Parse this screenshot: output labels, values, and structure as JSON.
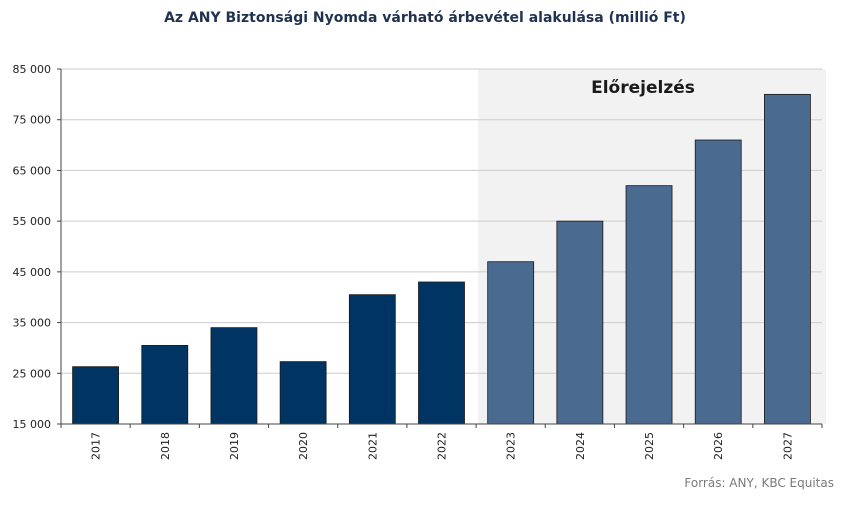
{
  "title": "Az ANY Biztonsági Nyomda várható árbevétel  alakulása (millió Ft)",
  "source": "Forrás: ANY, KBC Equitas",
  "colors": {
    "actual": "#003463",
    "forecast": "#4a6a8f",
    "forecast_background": "#f2f2f2",
    "grid": "#cccccc",
    "axis": "#444444"
  },
  "chart_data": {
    "type": "bar",
    "title": "Az ANY Biztonsági Nyomda várható árbevétel  alakulása (millió Ft)",
    "categories": [
      "2017",
      "2018",
      "2019",
      "2020",
      "2021",
      "2022",
      "2023",
      "2024",
      "2025",
      "2026",
      "2027"
    ],
    "values": [
      26300,
      30500,
      34000,
      27300,
      40500,
      43000,
      47000,
      55000,
      62000,
      71000,
      80000
    ],
    "forecast_from": "2023",
    "forecast_label": "Előrejelzés",
    "ylim": [
      15000,
      85000
    ],
    "yticks": [
      15000,
      25000,
      35000,
      45000,
      55000,
      65000,
      75000,
      85000
    ],
    "ytick_labels": [
      "15 000",
      "25 000",
      "35 000",
      "45 000",
      "55 000",
      "65 000",
      "75 000",
      "85 000"
    ],
    "xlabel": "",
    "ylabel": "",
    "grid": true,
    "legend": "none"
  }
}
